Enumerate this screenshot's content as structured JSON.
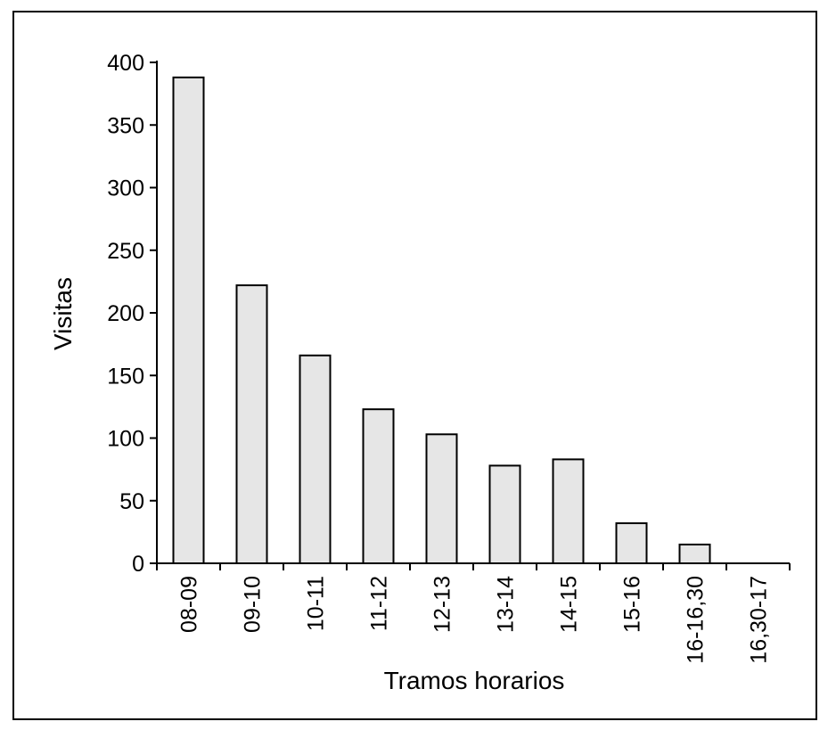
{
  "chart_data": {
    "type": "bar",
    "xlabel": "Tramos horarios",
    "ylabel": "Visitas",
    "categories": [
      "08-09",
      "09-10",
      "10-11",
      "11-12",
      "12-13",
      "13-14",
      "14-15",
      "15-16",
      "16-16,30",
      "16,30-17"
    ],
    "values": [
      388,
      222,
      166,
      123,
      103,
      78,
      83,
      32,
      15,
      0
    ],
    "ylim": [
      0,
      400
    ],
    "yticks": [
      0,
      50,
      100,
      150,
      200,
      250,
      300,
      350,
      400
    ],
    "grid": false,
    "legend": "none",
    "colors": {
      "bar_fill": "#e6e6e6",
      "bar_stroke": "#000000",
      "axis": "#000000"
    }
  }
}
